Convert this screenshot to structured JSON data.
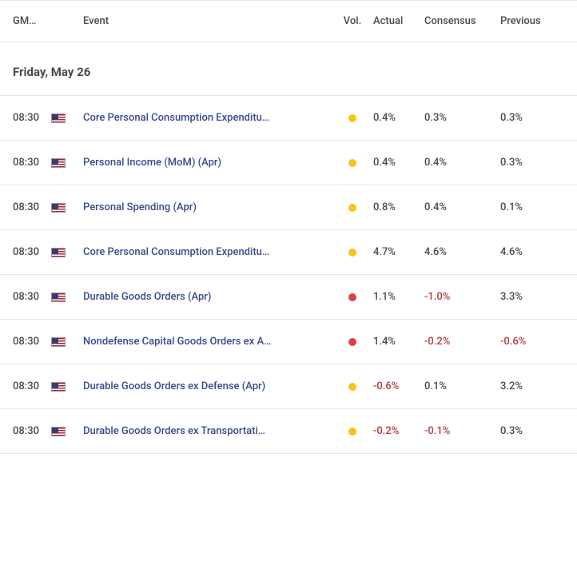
{
  "columns": {
    "gmt": "GM…",
    "event": "Event",
    "vol": "Vol.",
    "actual": "Actual",
    "consensus": "Consensus",
    "previous": "Previous"
  },
  "date_header": "Friday, May 26",
  "vol_colors": {
    "yellow": "#f5c518",
    "red": "#d64545"
  },
  "neg_color": "#b33a3a",
  "link_color": "#3b4a8f",
  "rows": [
    {
      "time": "08:30",
      "flag": "us",
      "event": "Core Personal Consumption Expenditu…",
      "vol": "yellow",
      "actual": "0.4%",
      "consensus": "0.3%",
      "previous": "0.3%"
    },
    {
      "time": "08:30",
      "flag": "us",
      "event": "Personal Income (MoM) (Apr)",
      "vol": "yellow",
      "actual": "0.4%",
      "consensus": "0.4%",
      "previous": "0.3%"
    },
    {
      "time": "08:30",
      "flag": "us",
      "event": "Personal Spending (Apr)",
      "vol": "yellow",
      "actual": "0.8%",
      "consensus": "0.4%",
      "previous": "0.1%"
    },
    {
      "time": "08:30",
      "flag": "us",
      "event": "Core Personal Consumption Expenditu…",
      "vol": "yellow",
      "actual": "4.7%",
      "consensus": "4.6%",
      "previous": "4.6%"
    },
    {
      "time": "08:30",
      "flag": "us",
      "event": "Durable Goods Orders (Apr)",
      "vol": "red",
      "actual": "1.1%",
      "consensus": "-1.0%",
      "previous": "3.3%"
    },
    {
      "time": "08:30",
      "flag": "us",
      "event": "Nondefense Capital Goods Orders ex A…",
      "vol": "red",
      "actual": "1.4%",
      "consensus": "-0.2%",
      "previous": "-0.6%"
    },
    {
      "time": "08:30",
      "flag": "us",
      "event": "Durable Goods Orders ex Defense (Apr)",
      "vol": "yellow",
      "actual": "-0.6%",
      "consensus": "0.1%",
      "previous": "3.2%"
    },
    {
      "time": "08:30",
      "flag": "us",
      "event": "Durable Goods Orders ex Transportati…",
      "vol": "yellow",
      "actual": "-0.2%",
      "consensus": "-0.1%",
      "previous": "0.3%"
    }
  ]
}
